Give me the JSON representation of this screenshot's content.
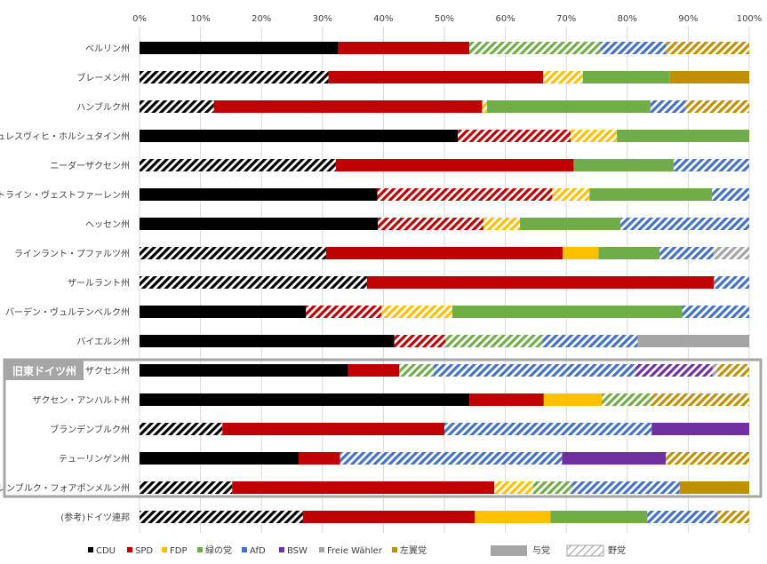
{
  "chart_data": {
    "type": "bar",
    "orientation": "horizontal",
    "stacked": "percent",
    "xlim": [
      0,
      100
    ],
    "xticks": [
      "0%",
      "10%",
      "20%",
      "30%",
      "40%",
      "50%",
      "60%",
      "70%",
      "80%",
      "90%",
      "100%"
    ],
    "grid": "vertical",
    "legend_position": "bottom",
    "parties": [
      "CDU",
      "SPD",
      "FDP",
      "緑の党",
      "AfD",
      "BSW",
      "Freie Wähler",
      "左翼党"
    ],
    "colors": {
      "CDU": "#000000",
      "SPD": "#c00000",
      "FDP": "#ffc000",
      "緑の党": "#70ad47",
      "AfD": "#4472c4",
      "BSW": "#7030a0",
      "Freie Wähler": "#a5a5a5",
      "左翼党": "#bf9000"
    },
    "status_legend": {
      "government": "与党",
      "opposition": "野党"
    },
    "annotation": {
      "text": "旧東ドイツ州",
      "from": "ザクセン州",
      "to": "メクレンブルク・フォアポンメルン州"
    },
    "states": [
      {
        "name": "ベルリン州",
        "segments": [
          {
            "party": "CDU",
            "value": 32.6,
            "gov": true
          },
          {
            "party": "SPD",
            "value": 21.5,
            "gov": true
          },
          {
            "party": "緑の党",
            "value": 21.5,
            "gov": false
          },
          {
            "party": "AfD",
            "value": 10.7,
            "gov": false
          },
          {
            "party": "左翼党",
            "value": 13.7,
            "gov": false
          }
        ]
      },
      {
        "name": "ブレーメン州",
        "segments": [
          {
            "party": "CDU",
            "value": 31.0,
            "gov": false
          },
          {
            "party": "SPD",
            "value": 35.2,
            "gov": true
          },
          {
            "party": "FDP",
            "value": 6.5,
            "gov": false
          },
          {
            "party": "緑の党",
            "value": 14.3,
            "gov": true
          },
          {
            "party": "左翼党",
            "value": 13.0,
            "gov": true
          }
        ]
      },
      {
        "name": "ハンブルク州",
        "segments": [
          {
            "party": "CDU",
            "value": 12.2,
            "gov": false
          },
          {
            "party": "SPD",
            "value": 44.0,
            "gov": true
          },
          {
            "party": "FDP",
            "value": 0.8,
            "gov": false
          },
          {
            "party": "緑の党",
            "value": 26.8,
            "gov": true
          },
          {
            "party": "AfD",
            "value": 5.7,
            "gov": false
          },
          {
            "party": "左翼党",
            "value": 10.5,
            "gov": false
          }
        ]
      },
      {
        "name": "シュレスヴィヒ・ホルシュタイン州",
        "segments": [
          {
            "party": "CDU",
            "value": 52.2,
            "gov": true
          },
          {
            "party": "SPD",
            "value": 18.5,
            "gov": false
          },
          {
            "party": "FDP",
            "value": 7.6,
            "gov": false
          },
          {
            "party": "緑の党",
            "value": 21.7,
            "gov": true
          }
        ]
      },
      {
        "name": "ニーダーザクセン州",
        "segments": [
          {
            "party": "CDU",
            "value": 32.2,
            "gov": false
          },
          {
            "party": "SPD",
            "value": 39.0,
            "gov": true
          },
          {
            "party": "緑の党",
            "value": 16.4,
            "gov": true
          },
          {
            "party": "AfD",
            "value": 12.4,
            "gov": false
          }
        ]
      },
      {
        "name": "ノルトライン・ヴェストファーレン州",
        "segments": [
          {
            "party": "CDU",
            "value": 39.0,
            "gov": true
          },
          {
            "party": "SPD",
            "value": 28.7,
            "gov": false
          },
          {
            "party": "FDP",
            "value": 6.1,
            "gov": false
          },
          {
            "party": "緑の党",
            "value": 20.1,
            "gov": true
          },
          {
            "party": "AfD",
            "value": 6.1,
            "gov": false
          }
        ]
      },
      {
        "name": "ヘッセン州",
        "segments": [
          {
            "party": "CDU",
            "value": 39.1,
            "gov": true
          },
          {
            "party": "SPD",
            "value": 17.3,
            "gov": false
          },
          {
            "party": "FDP",
            "value": 6.0,
            "gov": false
          },
          {
            "party": "緑の党",
            "value": 16.5,
            "gov": true
          },
          {
            "party": "AfD",
            "value": 21.1,
            "gov": false
          }
        ]
      },
      {
        "name": "ラインラント・プファルツ州",
        "segments": [
          {
            "party": "CDU",
            "value": 30.6,
            "gov": false
          },
          {
            "party": "SPD",
            "value": 38.8,
            "gov": true
          },
          {
            "party": "FDP",
            "value": 5.9,
            "gov": true
          },
          {
            "party": "緑の党",
            "value": 10.0,
            "gov": true
          },
          {
            "party": "AfD",
            "value": 8.8,
            "gov": false
          },
          {
            "party": "Freie Wähler",
            "value": 5.9,
            "gov": false
          }
        ]
      },
      {
        "name": "ザールラント州",
        "segments": [
          {
            "party": "CDU",
            "value": 37.3,
            "gov": false
          },
          {
            "party": "SPD",
            "value": 56.9,
            "gov": true
          },
          {
            "party": "AfD",
            "value": 5.8,
            "gov": false
          }
        ]
      },
      {
        "name": "バーデン・ヴュルテンベルク州",
        "segments": [
          {
            "party": "CDU",
            "value": 27.3,
            "gov": true
          },
          {
            "party": "SPD",
            "value": 12.4,
            "gov": false
          },
          {
            "party": "FDP",
            "value": 11.6,
            "gov": false
          },
          {
            "party": "緑の党",
            "value": 37.7,
            "gov": true
          },
          {
            "party": "AfD",
            "value": 11.0,
            "gov": false
          }
        ]
      },
      {
        "name": "バイエルン州",
        "segments": [
          {
            "party": "CDU",
            "value": 41.8,
            "gov": true
          },
          {
            "party": "SPD",
            "value": 8.4,
            "gov": false
          },
          {
            "party": "緑の党",
            "value": 15.9,
            "gov": false
          },
          {
            "party": "AfD",
            "value": 15.6,
            "gov": false
          },
          {
            "party": "Freie Wähler",
            "value": 18.3,
            "gov": true
          }
        ]
      },
      {
        "name": "ザクセン州",
        "segments": [
          {
            "party": "CDU",
            "value": 34.2,
            "gov": true
          },
          {
            "party": "SPD",
            "value": 8.4,
            "gov": true
          },
          {
            "party": "緑の党",
            "value": 5.6,
            "gov": false
          },
          {
            "party": "AfD",
            "value": 33.1,
            "gov": false
          },
          {
            "party": "BSW",
            "value": 12.7,
            "gov": false
          },
          {
            "party": "Freie Wähler",
            "value": 0.8,
            "gov": false
          },
          {
            "party": "左翼党",
            "value": 5.2,
            "gov": false
          }
        ]
      },
      {
        "name": "ザクセン・アンハルト州",
        "segments": [
          {
            "party": "CDU",
            "value": 54.1,
            "gov": true
          },
          {
            "party": "SPD",
            "value": 12.2,
            "gov": true
          },
          {
            "party": "FDP",
            "value": 9.5,
            "gov": true
          },
          {
            "party": "緑の党",
            "value": 8.1,
            "gov": false
          },
          {
            "party": "左翼党",
            "value": 16.1,
            "gov": false
          }
        ]
      },
      {
        "name": "ブランデンブルク州",
        "segments": [
          {
            "party": "CDU",
            "value": 13.6,
            "gov": false
          },
          {
            "party": "SPD",
            "value": 36.4,
            "gov": true
          },
          {
            "party": "AfD",
            "value": 34.0,
            "gov": false
          },
          {
            "party": "BSW",
            "value": 16.0,
            "gov": true
          }
        ]
      },
      {
        "name": "テューリンゲン州",
        "segments": [
          {
            "party": "CDU",
            "value": 26.1,
            "gov": true
          },
          {
            "party": "SPD",
            "value": 6.8,
            "gov": true
          },
          {
            "party": "AfD",
            "value": 36.4,
            "gov": false
          },
          {
            "party": "BSW",
            "value": 17.0,
            "gov": true
          },
          {
            "party": "左翼党",
            "value": 13.7,
            "gov": false
          }
        ]
      },
      {
        "name": "メクレンブルク・フォアポンメルン州",
        "segments": [
          {
            "party": "CDU",
            "value": 15.2,
            "gov": false
          },
          {
            "party": "SPD",
            "value": 43.0,
            "gov": true
          },
          {
            "party": "FDP",
            "value": 6.4,
            "gov": false
          },
          {
            "party": "緑の党",
            "value": 6.3,
            "gov": false
          },
          {
            "party": "AfD",
            "value": 17.7,
            "gov": false
          },
          {
            "party": "左翼党",
            "value": 11.4,
            "gov": true
          }
        ]
      },
      {
        "name": "(参考)ドイツ連邦",
        "segments": [
          {
            "party": "CDU",
            "value": 26.8,
            "gov": false
          },
          {
            "party": "SPD",
            "value": 28.2,
            "gov": true
          },
          {
            "party": "FDP",
            "value": 12.4,
            "gov": true
          },
          {
            "party": "緑の党",
            "value": 15.9,
            "gov": true
          },
          {
            "party": "AfD",
            "value": 11.5,
            "gov": false
          },
          {
            "party": "左翼党",
            "value": 5.2,
            "gov": false
          }
        ]
      }
    ]
  }
}
